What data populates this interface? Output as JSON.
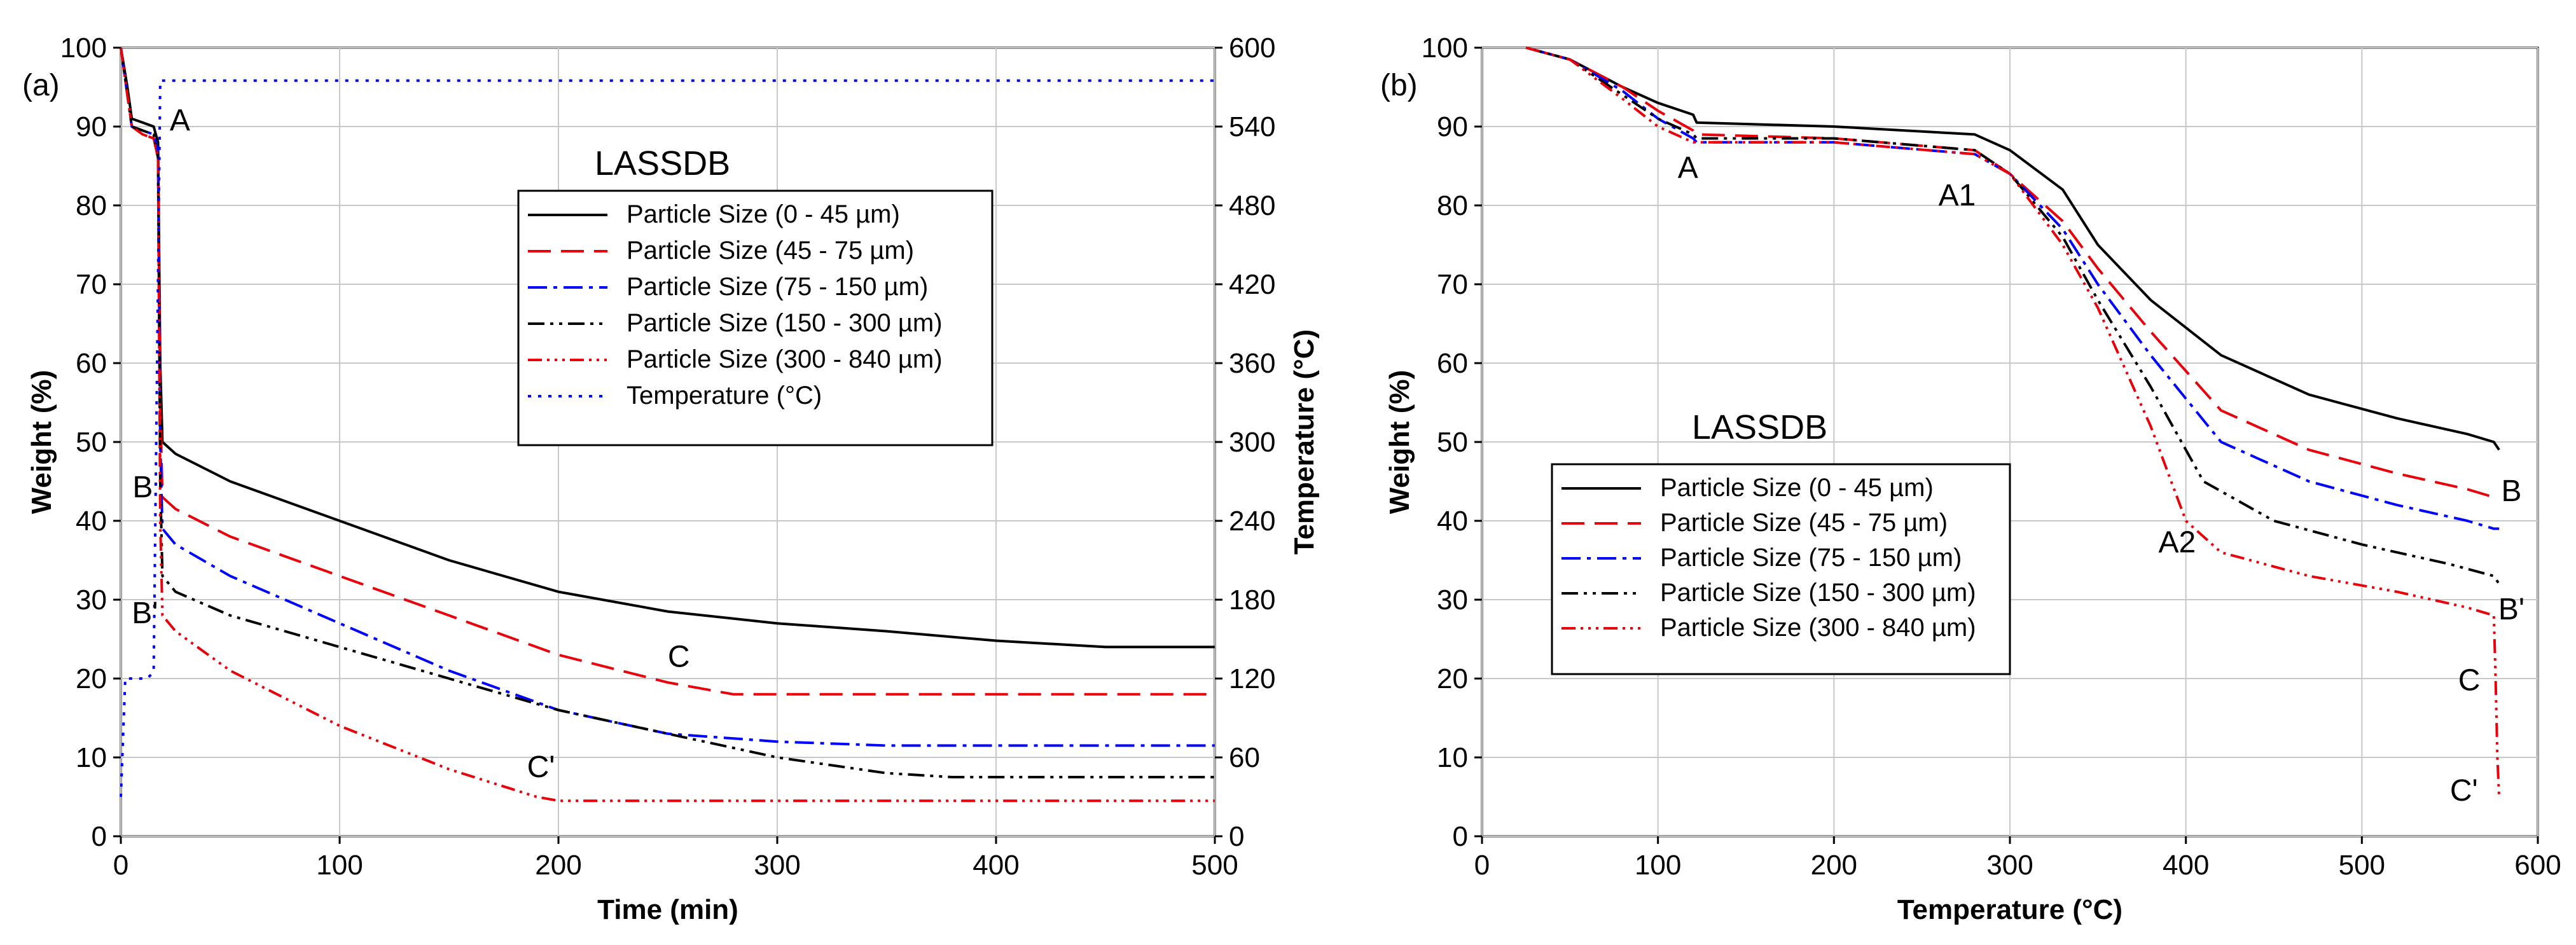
{
  "chart_data": [
    {
      "panel": "(a)",
      "type": "line",
      "title": "LASSDB",
      "xlabel": "Time (min)",
      "ylabel": "Weight (%)",
      "y2label": "Temperature (°C)",
      "xlim": [
        0,
        500
      ],
      "ylim": [
        0,
        100
      ],
      "y2lim": [
        0,
        600
      ],
      "xticks": [
        0,
        100,
        200,
        300,
        400,
        500
      ],
      "yticks": [
        0,
        10,
        20,
        30,
        40,
        50,
        60,
        70,
        80,
        90,
        100
      ],
      "y2ticks": [
        0,
        60,
        120,
        180,
        240,
        300,
        360,
        420,
        480,
        540,
        600
      ],
      "grid": true,
      "legend_position": "upper-right",
      "series": [
        {
          "name": "Particle Size (0 - 45 µm)",
          "color": "#000000",
          "dash": "solid",
          "axis": "left",
          "points": [
            [
              0,
              100
            ],
            [
              3,
              95
            ],
            [
              5,
              91
            ],
            [
              10,
              90.5
            ],
            [
              15,
              90
            ],
            [
              17,
              88
            ],
            [
              18,
              60
            ],
            [
              19,
              50
            ],
            [
              25,
              48.5
            ],
            [
              50,
              45
            ],
            [
              100,
              40
            ],
            [
              150,
              35
            ],
            [
              200,
              31
            ],
            [
              250,
              28.5
            ],
            [
              300,
              27
            ],
            [
              350,
              26
            ],
            [
              400,
              24.8
            ],
            [
              450,
              24
            ],
            [
              500,
              24
            ]
          ]
        },
        {
          "name": "Particle Size (45 - 75 µm)",
          "color": "#e8000b",
          "dash": "long-dash",
          "axis": "left",
          "points": [
            [
              0,
              100
            ],
            [
              3,
              94
            ],
            [
              5,
              90
            ],
            [
              10,
              89
            ],
            [
              15,
              88.5
            ],
            [
              17,
              86
            ],
            [
              18,
              55
            ],
            [
              19,
              43
            ],
            [
              25,
              41.5
            ],
            [
              50,
              38
            ],
            [
              100,
              33
            ],
            [
              150,
              28
            ],
            [
              200,
              23
            ],
            [
              250,
              19.5
            ],
            [
              280,
              18
            ],
            [
              300,
              18
            ],
            [
              400,
              18
            ],
            [
              500,
              18
            ]
          ]
        },
        {
          "name": "Particle Size (75 - 150 µm)",
          "color": "#0000ff",
          "dash": "dash-dot",
          "axis": "left",
          "points": [
            [
              0,
              100
            ],
            [
              3,
              94
            ],
            [
              5,
              90
            ],
            [
              10,
              89.5
            ],
            [
              15,
              89
            ],
            [
              17,
              87
            ],
            [
              18,
              50
            ],
            [
              19,
              39
            ],
            [
              25,
              37
            ],
            [
              50,
              33
            ],
            [
              100,
              27
            ],
            [
              150,
              21
            ],
            [
              200,
              16
            ],
            [
              250,
              13
            ],
            [
              300,
              12
            ],
            [
              350,
              11.5
            ],
            [
              400,
              11.5
            ],
            [
              500,
              11.5
            ]
          ]
        },
        {
          "name": "Particle Size (150 - 300 µm)",
          "color": "#000000",
          "dash": "dash-dot-dot",
          "axis": "left",
          "points": [
            [
              0,
              100
            ],
            [
              3,
              94
            ],
            [
              5,
              90
            ],
            [
              10,
              89.5
            ],
            [
              15,
              89
            ],
            [
              17,
              86
            ],
            [
              18,
              45
            ],
            [
              19,
              33
            ],
            [
              25,
              31
            ],
            [
              50,
              28
            ],
            [
              100,
              24
            ],
            [
              150,
              20
            ],
            [
              200,
              16
            ],
            [
              250,
              13
            ],
            [
              300,
              10
            ],
            [
              350,
              8
            ],
            [
              380,
              7.5
            ],
            [
              400,
              7.5
            ],
            [
              500,
              7.5
            ]
          ]
        },
        {
          "name": "Particle Size (300 - 840 µm)",
          "color": "#e8000b",
          "dash": "dash-dot-dot-dot",
          "axis": "left",
          "points": [
            [
              0,
              100
            ],
            [
              3,
              94
            ],
            [
              5,
              90
            ],
            [
              10,
              89
            ],
            [
              15,
              88.5
            ],
            [
              17,
              86
            ],
            [
              18,
              40
            ],
            [
              19,
              28
            ],
            [
              25,
              26
            ],
            [
              50,
              21
            ],
            [
              100,
              14
            ],
            [
              150,
              8.5
            ],
            [
              190,
              5
            ],
            [
              200,
              4.5
            ],
            [
              250,
              4.5
            ],
            [
              300,
              4.5
            ],
            [
              400,
              4.5
            ],
            [
              500,
              4.5
            ]
          ]
        },
        {
          "name": "Temperature (°C)",
          "color": "#0000ff",
          "dash": "dotted",
          "axis": "right",
          "points": [
            [
              0,
              30
            ],
            [
              2,
              120
            ],
            [
              12,
              120
            ],
            [
              15,
              125
            ],
            [
              18,
              575
            ],
            [
              500,
              575
            ]
          ]
        }
      ],
      "annotations": [
        {
          "text": "A",
          "x": 27,
          "y": 89.5
        },
        {
          "text": "B",
          "x": 10,
          "y": 43
        },
        {
          "text": "B'",
          "x": 11,
          "y": 27
        },
        {
          "text": "C",
          "x": 255,
          "y": 21.5
        },
        {
          "text": "C'",
          "x": 192,
          "y": 7.5
        }
      ]
    },
    {
      "panel": "(b)",
      "type": "line",
      "title": "LASSDB",
      "xlabel": "Temperature (°C)",
      "ylabel": "Weight (%)",
      "xlim": [
        0,
        600
      ],
      "ylim": [
        0,
        100
      ],
      "xticks": [
        0,
        100,
        200,
        300,
        400,
        500,
        600
      ],
      "yticks": [
        0,
        10,
        20,
        30,
        40,
        50,
        60,
        70,
        80,
        90,
        100
      ],
      "grid": true,
      "legend_position": "lower-left",
      "series": [
        {
          "name": "Particle Size (0 - 45 µm)",
          "color": "#000000",
          "dash": "solid",
          "points": [
            [
              25,
              100
            ],
            [
              50,
              98.5
            ],
            [
              80,
              95
            ],
            [
              100,
              93
            ],
            [
              120,
              91.5
            ],
            [
              122,
              90.5
            ],
            [
              200,
              90
            ],
            [
              280,
              89
            ],
            [
              300,
              87
            ],
            [
              330,
              82
            ],
            [
              350,
              75
            ],
            [
              380,
              68
            ],
            [
              420,
              61
            ],
            [
              470,
              56
            ],
            [
              520,
              53
            ],
            [
              560,
              51
            ],
            [
              575,
              50
            ],
            [
              578,
              49
            ]
          ]
        },
        {
          "name": "Particle Size (45 - 75 µm)",
          "color": "#e8000b",
          "dash": "long-dash",
          "points": [
            [
              25,
              100
            ],
            [
              50,
              98.5
            ],
            [
              80,
              95
            ],
            [
              100,
              92
            ],
            [
              120,
              89.5
            ],
            [
              122,
              89
            ],
            [
              200,
              88.5
            ],
            [
              280,
              87
            ],
            [
              300,
              84
            ],
            [
              330,
              78
            ],
            [
              350,
              72
            ],
            [
              380,
              64
            ],
            [
              420,
              54
            ],
            [
              470,
              49
            ],
            [
              520,
              46
            ],
            [
              560,
              44
            ],
            [
              575,
              43
            ],
            [
              578,
              43
            ]
          ]
        },
        {
          "name": "Particle Size (75 - 150 µm)",
          "color": "#0000ff",
          "dash": "dash-dot",
          "points": [
            [
              25,
              100
            ],
            [
              50,
              98.5
            ],
            [
              80,
              94.5
            ],
            [
              100,
              91
            ],
            [
              120,
              88.5
            ],
            [
              122,
              88
            ],
            [
              200,
              88
            ],
            [
              280,
              86.5
            ],
            [
              300,
              84
            ],
            [
              330,
              77
            ],
            [
              350,
              70
            ],
            [
              380,
              61
            ],
            [
              420,
              50
            ],
            [
              470,
              45
            ],
            [
              520,
              42
            ],
            [
              560,
              40
            ],
            [
              575,
              39
            ],
            [
              578,
              39
            ]
          ]
        },
        {
          "name": "Particle Size (150 - 300 µm)",
          "color": "#000000",
          "dash": "dash-dot-dot",
          "points": [
            [
              25,
              100
            ],
            [
              50,
              98.5
            ],
            [
              80,
              94
            ],
            [
              100,
              91
            ],
            [
              120,
              89
            ],
            [
              122,
              88.5
            ],
            [
              200,
              88.5
            ],
            [
              280,
              87
            ],
            [
              300,
              84
            ],
            [
              330,
              76
            ],
            [
              350,
              68
            ],
            [
              380,
              57
            ],
            [
              410,
              45
            ],
            [
              450,
              40
            ],
            [
              500,
              37
            ],
            [
              550,
              34.5
            ],
            [
              575,
              33
            ],
            [
              578,
              32
            ]
          ]
        },
        {
          "name": "Particle Size (300 - 840 µm)",
          "color": "#e8000b",
          "dash": "dash-dot-dot-dot",
          "points": [
            [
              25,
              100
            ],
            [
              50,
              98.5
            ],
            [
              80,
              93.5
            ],
            [
              100,
              90
            ],
            [
              120,
              88
            ],
            [
              122,
              88
            ],
            [
              200,
              88
            ],
            [
              280,
              86.5
            ],
            [
              300,
              84
            ],
            [
              330,
              75
            ],
            [
              350,
              67
            ],
            [
              380,
              52
            ],
            [
              400,
              40
            ],
            [
              420,
              36
            ],
            [
              470,
              33
            ],
            [
              520,
              31
            ],
            [
              560,
              29
            ],
            [
              575,
              28
            ],
            [
              576,
              20
            ],
            [
              577,
              10
            ],
            [
              578,
              5
            ]
          ]
        }
      ],
      "annotations": [
        {
          "text": "A",
          "x": 117,
          "y": 83.5
        },
        {
          "text": "A1",
          "x": 270,
          "y": 80
        },
        {
          "text": "A2",
          "x": 395,
          "y": 36
        },
        {
          "text": "B",
          "x": 585,
          "y": 42.5
        },
        {
          "text": "B'",
          "x": 585,
          "y": 27.5
        },
        {
          "text": "C",
          "x": 561,
          "y": 18.5
        },
        {
          "text": "C'",
          "x": 558,
          "y": 4.5
        }
      ]
    }
  ]
}
